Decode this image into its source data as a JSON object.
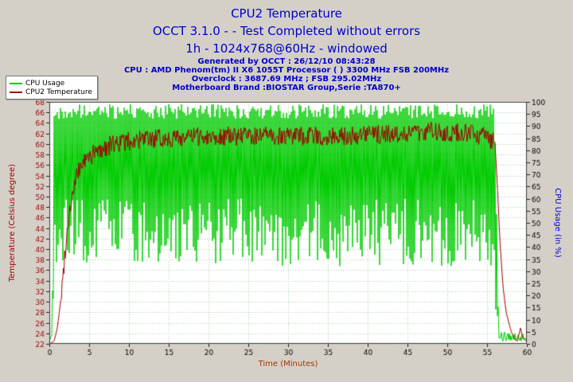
{
  "header": {
    "title": "CPU2 Temperature",
    "subtitle": "OCCT 3.1.0 -  - Test Completed without errors",
    "mode_line": "1h - 1024x768@60Hz - windowed",
    "info_lines": [
      "Generated by OCCT : 26/12/10 08:43:28",
      "CPU : AMD Phenom(tm) II X6 1055T Processor (  ) 3300 MHz FSB 200MHz",
      "Overclock : 3687.69 MHz ; FSB 295.02MHz",
      "Motherboard Brand :BIOSTAR Group,Serie :TA870+"
    ],
    "text_color": "#0000cd"
  },
  "legend": {
    "entries": [
      {
        "label": "CPU Usage",
        "color": "#00cc00"
      },
      {
        "label": "CPU2 Temperature",
        "color": "#a00000"
      }
    ]
  },
  "chart_data": {
    "type": "line",
    "title": "CPU2 Temperature",
    "grid": {
      "on": true,
      "color": "#9fd49f",
      "dashed": true
    },
    "plot_background": "#ffffff",
    "legend_position": "top-left",
    "x_axis": {
      "label": "Time (Minutes)",
      "min": 0,
      "max": 60,
      "tick_step": 5,
      "color": "#aa3300",
      "tick_label_color": "#000000"
    },
    "y_left": {
      "label": "Temperature (Celsius degree)",
      "min": 22,
      "max": 68,
      "tick_step": 2,
      "color": "#a00000"
    },
    "y_right": {
      "label": "CPU Usage (in %)",
      "min": 0,
      "max": 100,
      "tick_step": 5,
      "color": "#0000cd",
      "tick_label_color": "#000000"
    },
    "series": [
      {
        "name": "CPU Usage",
        "axis": "right",
        "color": "#00cc00",
        "style": "noisy-spikes",
        "sample_step": 0.1,
        "envelope_high": [
          [
            0,
            2
          ],
          [
            0.35,
            4
          ],
          [
            0.6,
            95
          ],
          [
            1,
            99
          ],
          [
            55.9,
            99
          ],
          [
            56.2,
            55
          ],
          [
            56.45,
            6
          ],
          [
            60,
            4
          ]
        ],
        "envelope_low": [
          [
            0,
            0.5
          ],
          [
            0.35,
            1
          ],
          [
            0.6,
            25
          ],
          [
            1,
            32
          ],
          [
            55.9,
            32
          ],
          [
            56.2,
            4
          ],
          [
            56.45,
            1
          ],
          [
            60,
            1
          ]
        ]
      },
      {
        "name": "CPU2 Temperature",
        "axis": "left",
        "color": "#a00000",
        "style": "noisy-line",
        "sample_step": 0.08,
        "jitter": 1.8,
        "jitter_range": [
          1.5,
          55.8
        ],
        "profile": [
          [
            0,
            22
          ],
          [
            0.6,
            22.5
          ],
          [
            1,
            25
          ],
          [
            1.5,
            31
          ],
          [
            2,
            40
          ],
          [
            2.5,
            47
          ],
          [
            3,
            51
          ],
          [
            3.5,
            54
          ],
          [
            4,
            56
          ],
          [
            5,
            57.5
          ],
          [
            6,
            58.5
          ],
          [
            8,
            60
          ],
          [
            10,
            60.5
          ],
          [
            14,
            61
          ],
          [
            20,
            61.5
          ],
          [
            26,
            61.5
          ],
          [
            32,
            61.5
          ],
          [
            38,
            61.5
          ],
          [
            44,
            62
          ],
          [
            48,
            62.5
          ],
          [
            52,
            62
          ],
          [
            55,
            61.5
          ],
          [
            56,
            60
          ],
          [
            56.3,
            52
          ],
          [
            56.6,
            42
          ],
          [
            57,
            33
          ],
          [
            57.4,
            28
          ],
          [
            58,
            24.5
          ],
          [
            58.4,
            23
          ],
          [
            58.8,
            22.5
          ],
          [
            59.2,
            25
          ],
          [
            59.5,
            23
          ],
          [
            60,
            22.5
          ]
        ]
      }
    ]
  }
}
